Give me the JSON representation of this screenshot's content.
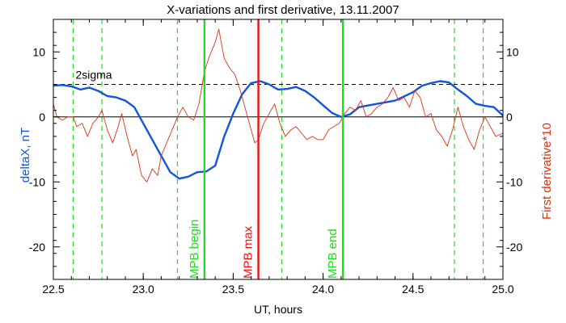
{
  "chart_data": {
    "type": "line",
    "title": "X-variations and first derivative, 13.11.2007",
    "xlabel": "UT, hours",
    "ylabel_left": "deltaX, nT",
    "ylabel_right": "First derivative*10",
    "xlim": [
      22.5,
      25.0
    ],
    "ylim": [
      -25,
      15
    ],
    "x_ticks": [
      "22.5",
      "23.0",
      "23.5",
      "24.0",
      "24.5",
      "25.0"
    ],
    "y_ticks": [
      "10",
      "0",
      "-10",
      "-20"
    ],
    "threshold": {
      "label": "2sigma",
      "value": 5
    },
    "zero_line": 0,
    "vertical_markers": [
      {
        "x": 23.34,
        "label": "MPB begin",
        "color": "#22dd22"
      },
      {
        "x": 23.64,
        "label": "MPB max",
        "color": "#ee1111"
      },
      {
        "x": 24.11,
        "label": "MPB end",
        "color": "#22dd22"
      }
    ],
    "dashed_markers": {
      "color": "#22dd22",
      "x": [
        22.61,
        22.77,
        23.19,
        23.77,
        24.73,
        24.89
      ]
    },
    "series": [
      {
        "name": "deltaX, nT",
        "color": "#1155dd",
        "x": [
          22.5,
          22.55,
          22.6,
          22.65,
          22.7,
          22.75,
          22.8,
          22.85,
          22.9,
          22.95,
          23.0,
          23.05,
          23.1,
          23.15,
          23.2,
          23.25,
          23.3,
          23.35,
          23.4,
          23.45,
          23.5,
          23.55,
          23.6,
          23.65,
          23.7,
          23.75,
          23.8,
          23.85,
          23.9,
          23.95,
          24.0,
          24.05,
          24.1,
          24.15,
          24.2,
          24.3,
          24.4,
          24.5,
          24.55,
          24.6,
          24.65,
          24.7,
          24.75,
          24.8,
          24.85,
          24.9,
          24.95,
          25.0
        ],
        "values": [
          4.8,
          4.9,
          4.7,
          4.2,
          4.5,
          4.0,
          3.2,
          3.0,
          2.5,
          1.5,
          -1.0,
          -3.5,
          -6.0,
          -8.5,
          -9.5,
          -9.2,
          -8.5,
          -8.4,
          -7.5,
          -3.0,
          0.5,
          3.5,
          5.2,
          5.5,
          5.0,
          4.2,
          4.3,
          4.6,
          4.0,
          3.0,
          1.8,
          0.6,
          0.0,
          0.4,
          1.5,
          2.0,
          2.5,
          3.8,
          4.8,
          5.2,
          5.5,
          5.3,
          4.2,
          3.2,
          2.0,
          1.7,
          1.5,
          0.2
        ]
      },
      {
        "name": "First derivative*10",
        "color": "#dd3311",
        "x": [
          22.5,
          22.52,
          22.55,
          22.58,
          22.61,
          22.63,
          22.66,
          22.69,
          22.72,
          22.75,
          22.77,
          22.8,
          22.83,
          22.86,
          22.88,
          22.91,
          22.94,
          22.96,
          22.99,
          23.02,
          23.05,
          23.08,
          23.1,
          23.13,
          23.16,
          23.19,
          23.22,
          23.25,
          23.28,
          23.31,
          23.34,
          23.37,
          23.4,
          23.42,
          23.45,
          23.48,
          23.51,
          23.54,
          23.57,
          23.6,
          23.62,
          23.64,
          23.67,
          23.7,
          23.73,
          23.76,
          23.79,
          23.82,
          23.85,
          23.88,
          23.91,
          23.94,
          23.97,
          24.0,
          24.03,
          24.06,
          24.09,
          24.12,
          24.15,
          24.18,
          24.21,
          24.24,
          24.27,
          24.3,
          24.33,
          24.36,
          24.39,
          24.42,
          24.45,
          24.48,
          24.51,
          24.54,
          24.57,
          24.6,
          24.63,
          24.66,
          24.69,
          24.72,
          24.75,
          24.78,
          24.81,
          24.84,
          24.87,
          24.9,
          24.93,
          24.96,
          25.0
        ],
        "values": [
          2.0,
          0.0,
          -0.5,
          0.0,
          0.0,
          -1.5,
          -1.0,
          -3.0,
          -1.0,
          0.0,
          1.0,
          -2.0,
          -4.0,
          -1.5,
          0.5,
          -3.0,
          -6.0,
          -5.0,
          -9.0,
          -10.0,
          -8.0,
          -9.0,
          -6.0,
          -4.0,
          -2.0,
          0.0,
          1.5,
          0.0,
          -0.5,
          2.0,
          7.0,
          9.5,
          11.5,
          13.5,
          9.0,
          7.5,
          6.5,
          4.0,
          1.0,
          -2.0,
          -4.0,
          -3.5,
          -1.0,
          0.5,
          2.0,
          -1.0,
          -3.0,
          -2.0,
          -1.5,
          -2.5,
          -3.5,
          -3.0,
          -3.5,
          -3.5,
          -2.0,
          -1.5,
          -1.0,
          0.5,
          1.5,
          1.0,
          2.5,
          0.0,
          0.5,
          1.5,
          2.0,
          3.0,
          4.5,
          2.5,
          3.0,
          1.5,
          4.0,
          3.0,
          0.0,
          0.5,
          -2.0,
          -3.0,
          -4.5,
          -2.0,
          1.5,
          -1.5,
          -3.5,
          -5.0,
          -2.0,
          0.0,
          -1.5,
          -3.0,
          -2.5
        ]
      }
    ]
  }
}
